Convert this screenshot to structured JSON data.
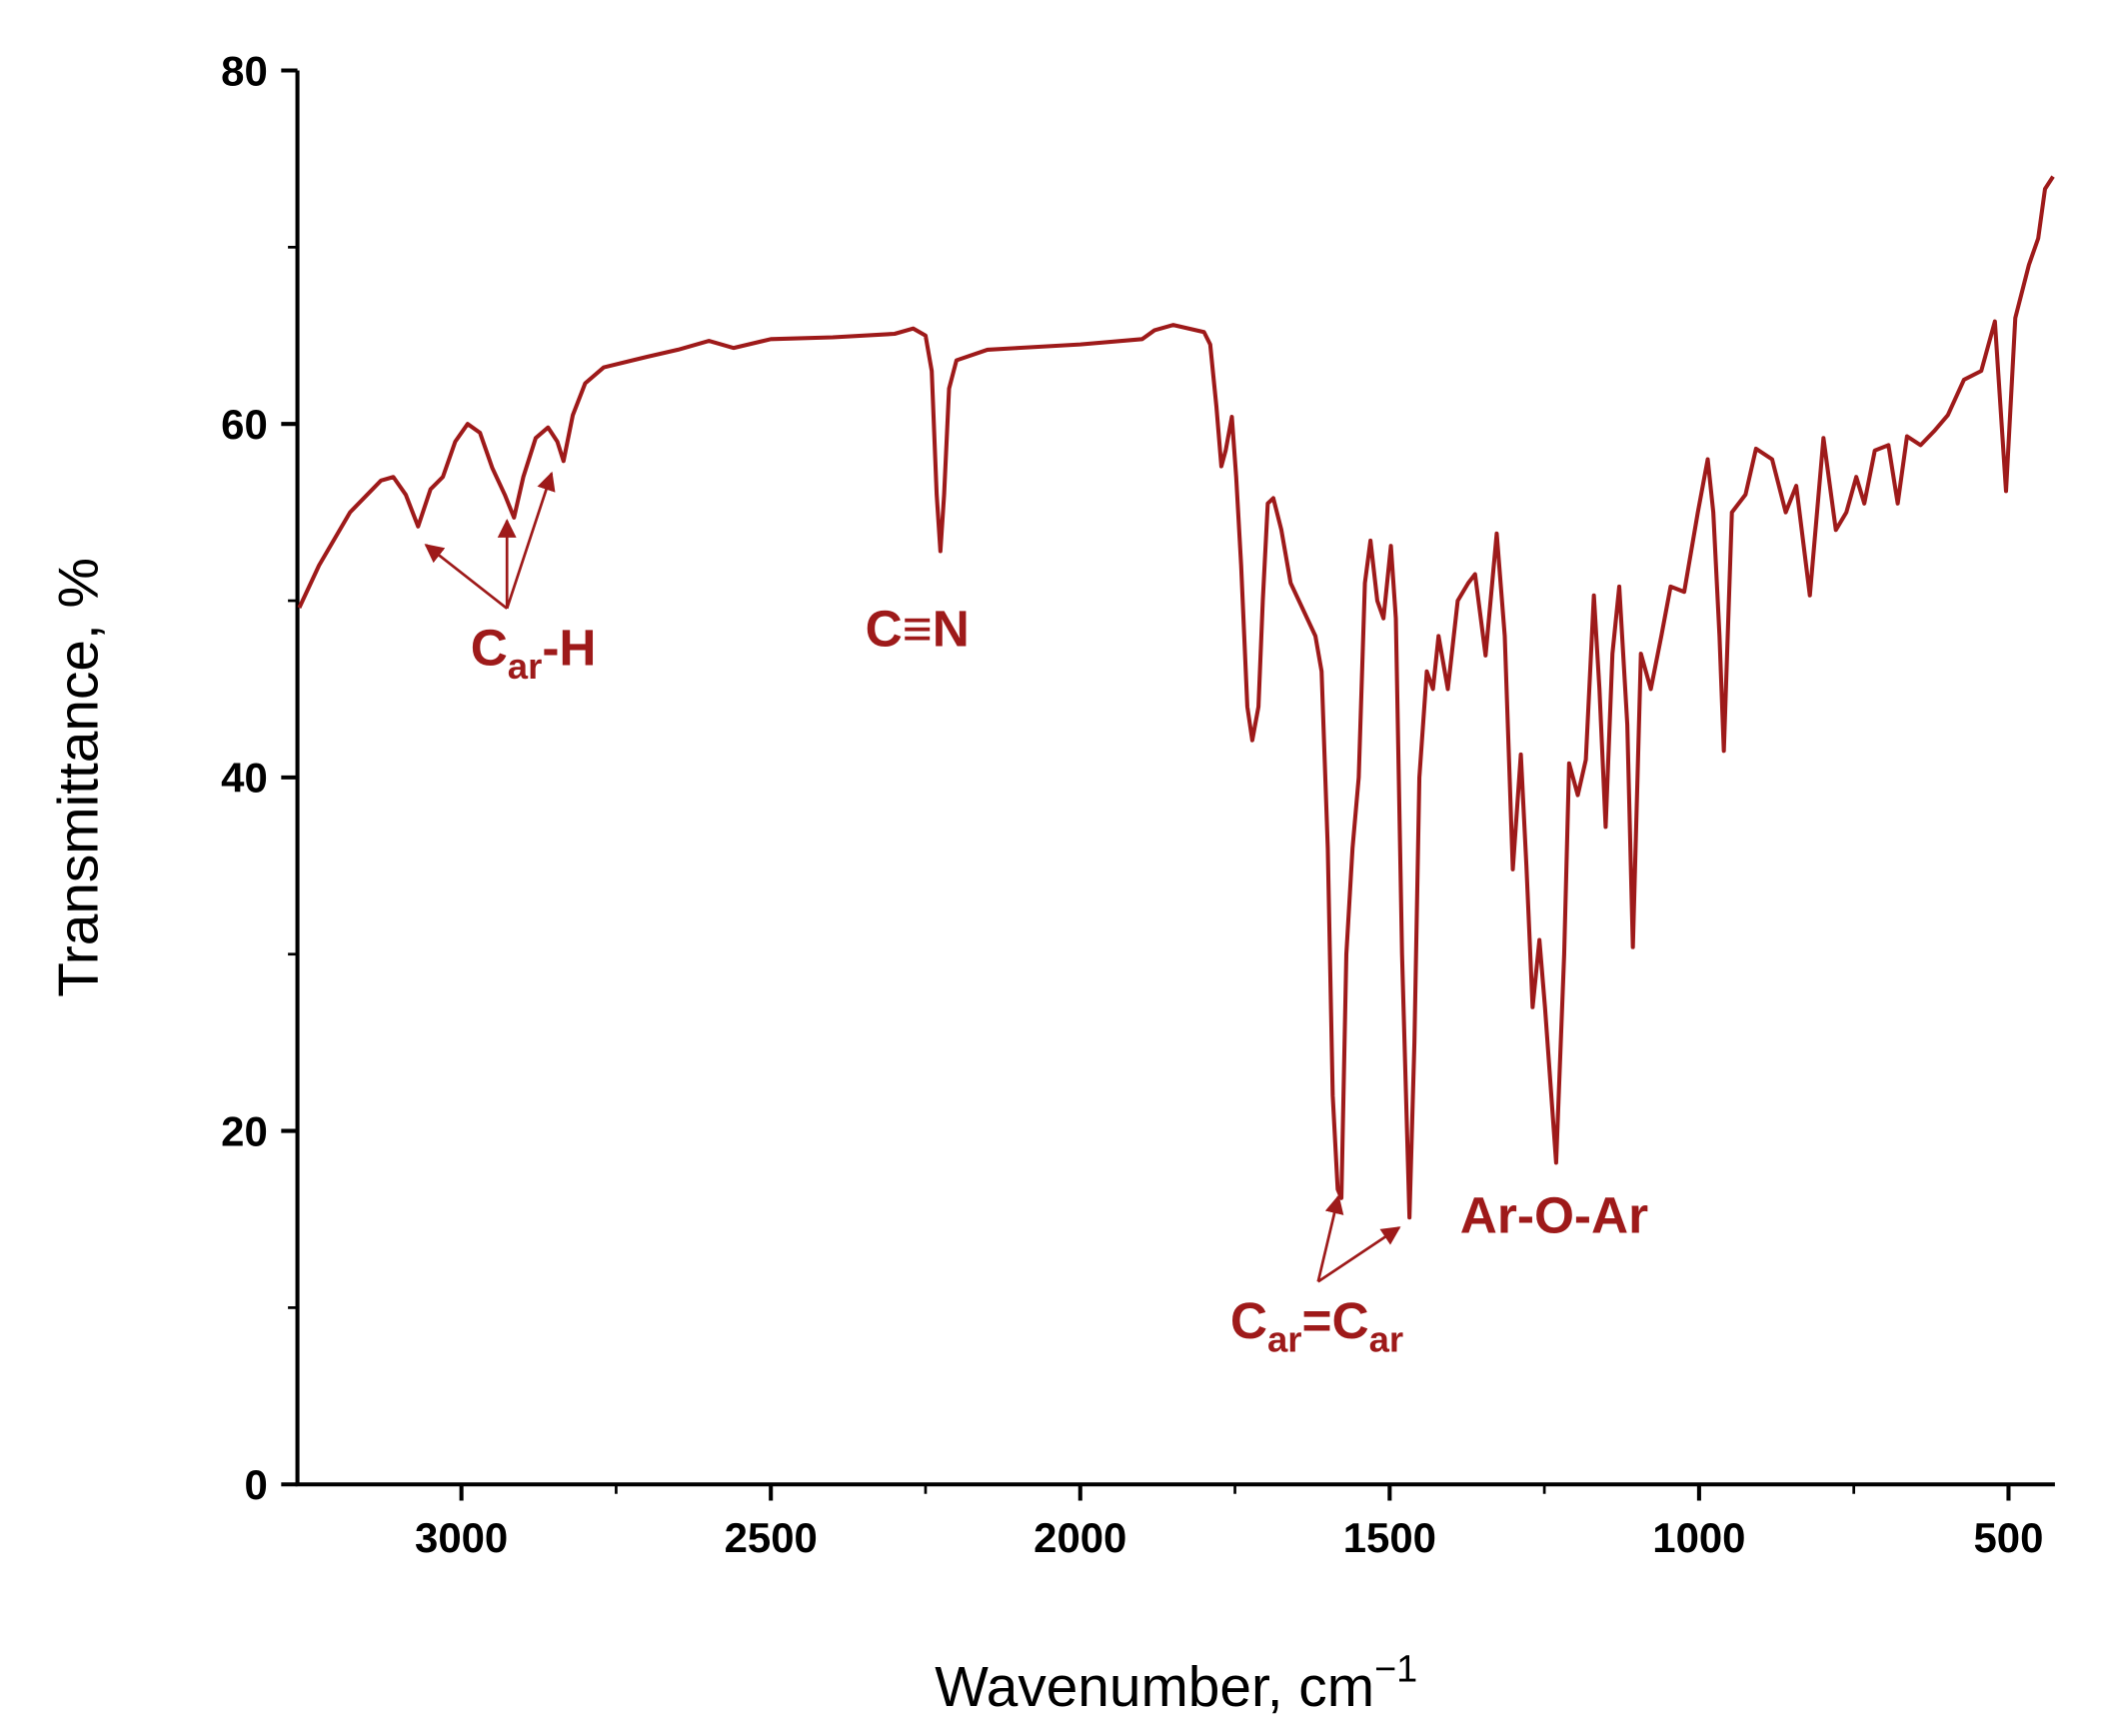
{
  "chart_data": {
    "type": "line",
    "xlabel": [
      "Wavenumber, cm",
      "−1"
    ],
    "ylabel": "Transmittance, %",
    "color": "#9e1a1a",
    "xlim": [
      3265,
      425
    ],
    "xticks": [
      3000,
      2500,
      2000,
      1500,
      1000,
      500
    ],
    "xminorticks": [
      2750,
      2250,
      1750,
      1250,
      750
    ],
    "ylim": [
      0,
      80
    ],
    "yticks": [
      0,
      20,
      40,
      60,
      80
    ],
    "yminorticks": [
      10,
      30,
      50,
      70
    ],
    "annotations": [
      {
        "text": [
          "C",
          "ar",
          "-H"
        ]
      },
      {
        "text": [
          "C≡N"
        ]
      },
      {
        "text": [
          "Ar-O-Ar"
        ]
      },
      {
        "text": [
          "C",
          "ar",
          "=C",
          "ar"
        ]
      }
    ],
    "x": [
      3262,
      3230,
      3180,
      3130,
      3110,
      3090,
      3070,
      3050,
      3030,
      3010,
      2990,
      2970,
      2950,
      2930,
      2915,
      2900,
      2880,
      2860,
      2845,
      2835,
      2820,
      2800,
      2770,
      2700,
      2650,
      2600,
      2560,
      2500,
      2400,
      2300,
      2270,
      2250,
      2240,
      2232,
      2226,
      2220,
      2212,
      2200,
      2150,
      2100,
      2000,
      1900,
      1880,
      1850,
      1800,
      1790,
      1780,
      1772,
      1765,
      1755,
      1748,
      1740,
      1730,
      1722,
      1712,
      1705,
      1697,
      1688,
      1675,
      1660,
      1640,
      1620,
      1610,
      1600,
      1592,
      1584,
      1578,
      1570,
      1560,
      1550,
      1540,
      1531,
      1520,
      1510,
      1498,
      1490,
      1480,
      1468,
      1460,
      1452,
      1440,
      1430,
      1421,
      1406,
      1390,
      1373,
      1362,
      1345,
      1327,
      1314,
      1301,
      1288,
      1279,
      1269,
      1258,
      1249,
      1231,
      1218,
      1210,
      1196,
      1183,
      1170,
      1161,
      1151,
      1140,
      1129,
      1116,
      1107,
      1094,
      1078,
      1061,
      1046,
      1024,
      1002,
      986,
      977,
      967,
      960,
      947,
      925,
      908,
      882,
      860,
      843,
      821,
      799,
      779,
      762,
      746,
      733,
      716,
      694,
      679,
      664,
      642,
      620,
      598,
      572,
      544,
      522,
      504,
      489,
      467,
      452,
      441,
      428
    ],
    "values": [
      49.6,
      52,
      55,
      56.8,
      57,
      56,
      54.2,
      56.3,
      57,
      59,
      60,
      59.5,
      57.5,
      56,
      54.7,
      57,
      59.2,
      59.8,
      59,
      57.9,
      60.5,
      62.3,
      63.2,
      63.8,
      64.2,
      64.7,
      64.3,
      64.8,
      64.9,
      65.1,
      65.4,
      65,
      63,
      56,
      52.8,
      56,
      62,
      63.6,
      64.2,
      64.3,
      64.5,
      64.8,
      65.3,
      65.6,
      65.2,
      64.5,
      61,
      57.6,
      58.5,
      60.4,
      57,
      52,
      44,
      42.1,
      44,
      50,
      55.5,
      55.8,
      54,
      51,
      49.5,
      48,
      46,
      36,
      22,
      16.7,
      16.2,
      30,
      36,
      40,
      51,
      53.4,
      50,
      49,
      53.1,
      49,
      30,
      15.1,
      25,
      40,
      46,
      45,
      48,
      45,
      50,
      51,
      51.5,
      46.9,
      53.8,
      48,
      34.8,
      41.3,
      35,
      27,
      30.8,
      27,
      18.2,
      30,
      40.8,
      39,
      41,
      50.3,
      45,
      37.2,
      47,
      50.8,
      43,
      30.4,
      47,
      45,
      48,
      50.8,
      50.5,
      55,
      58,
      55,
      48,
      41.5,
      55,
      56,
      58.6,
      58,
      55,
      56.5,
      50.3,
      59.2,
      54,
      55,
      57,
      55.5,
      58.5,
      58.8,
      55.5,
      59.3,
      58.8,
      59.6,
      60.5,
      62.5,
      63,
      65.8,
      56.2,
      66,
      69,
      70.5,
      73.3,
      74
    ]
  }
}
